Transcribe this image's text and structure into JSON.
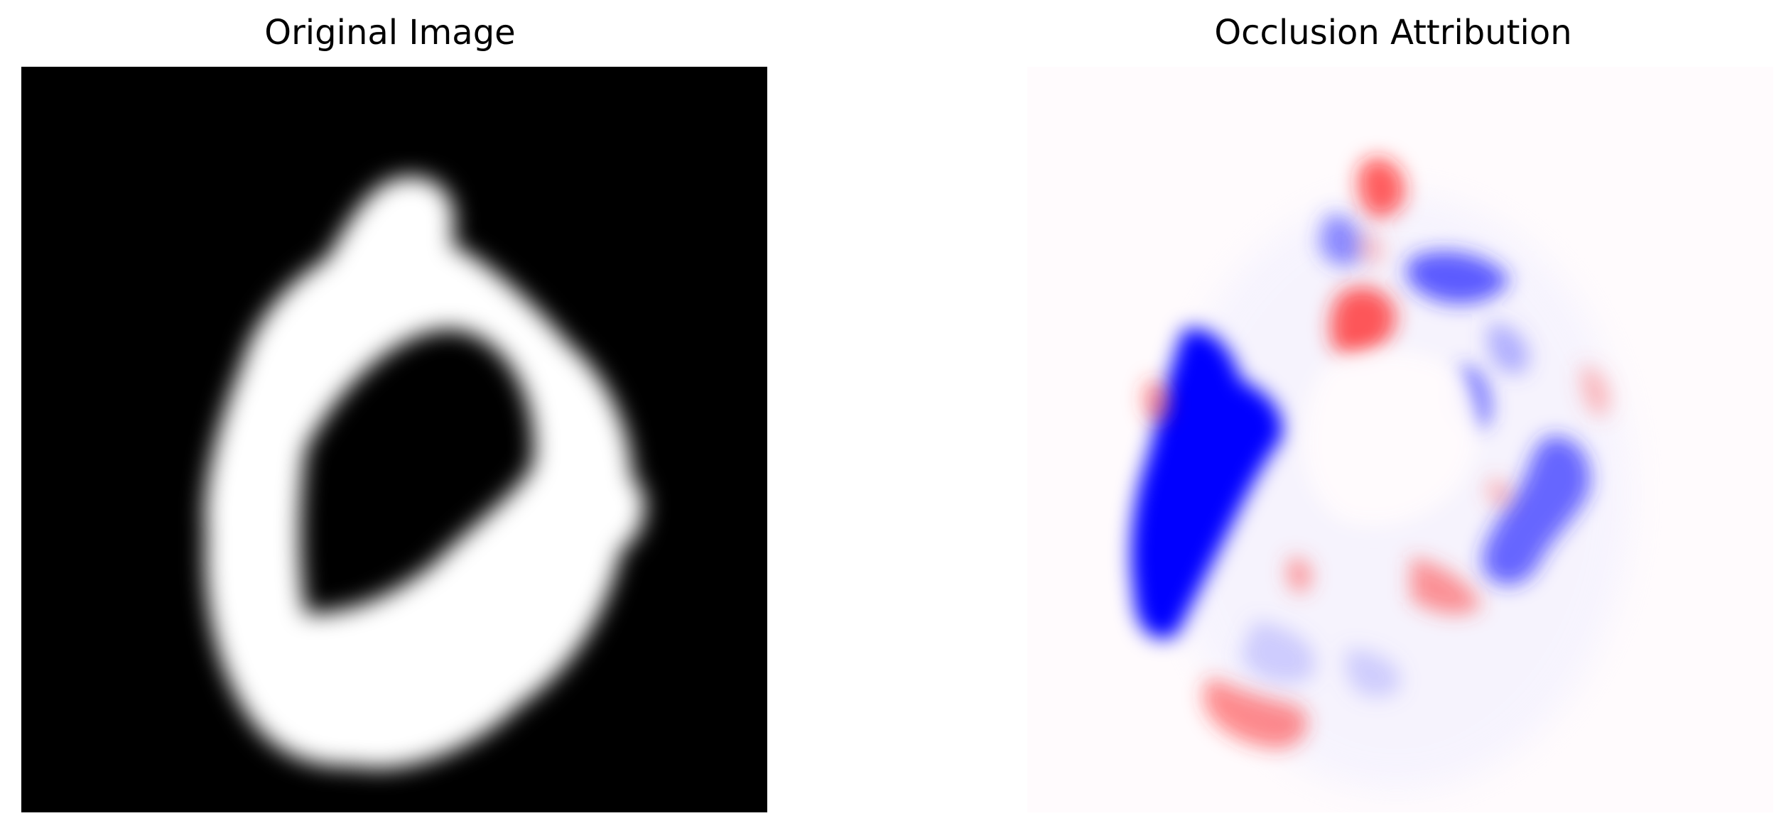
{
  "panels": {
    "original": {
      "title": "Original Image",
      "colors": {
        "background": "#000000",
        "stroke": "#ffffff"
      }
    },
    "attribution": {
      "title": "Occlusion Attribution",
      "colors": {
        "negative": "#0000ff",
        "positive": "#ff0000",
        "neutral": "#fffbfd"
      }
    }
  }
}
